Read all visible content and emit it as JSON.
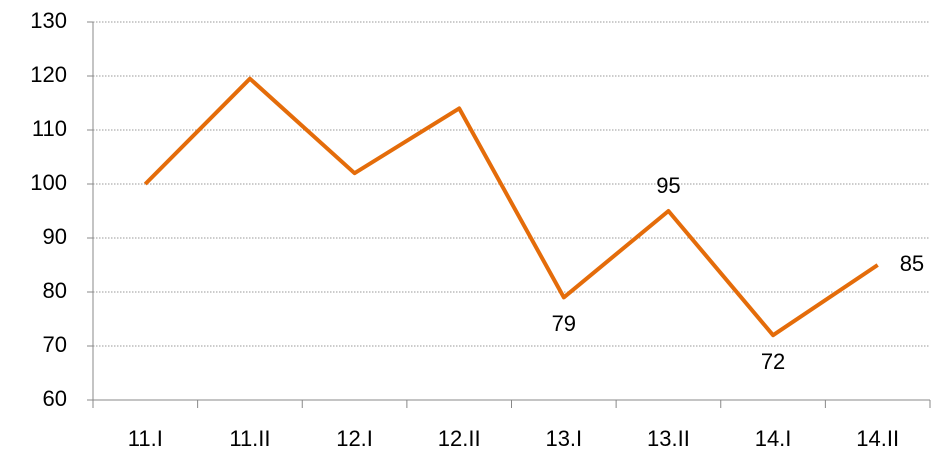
{
  "chart_data": {
    "type": "line",
    "categories": [
      "11.I",
      "11.II",
      "12.I",
      "12.II",
      "13.I",
      "13.II",
      "14.I",
      "14.II"
    ],
    "series": [
      {
        "color": "#e46c0a",
        "values": [
          100,
          119.5,
          102,
          114,
          79,
          95,
          72,
          85
        ],
        "value_labels": [
          null,
          null,
          null,
          null,
          "79",
          "95",
          "72",
          "85"
        ]
      }
    ],
    "ylim": [
      60,
      130
    ],
    "yticks": [
      60,
      70,
      80,
      90,
      100,
      110,
      120,
      130
    ],
    "grid": true
  }
}
